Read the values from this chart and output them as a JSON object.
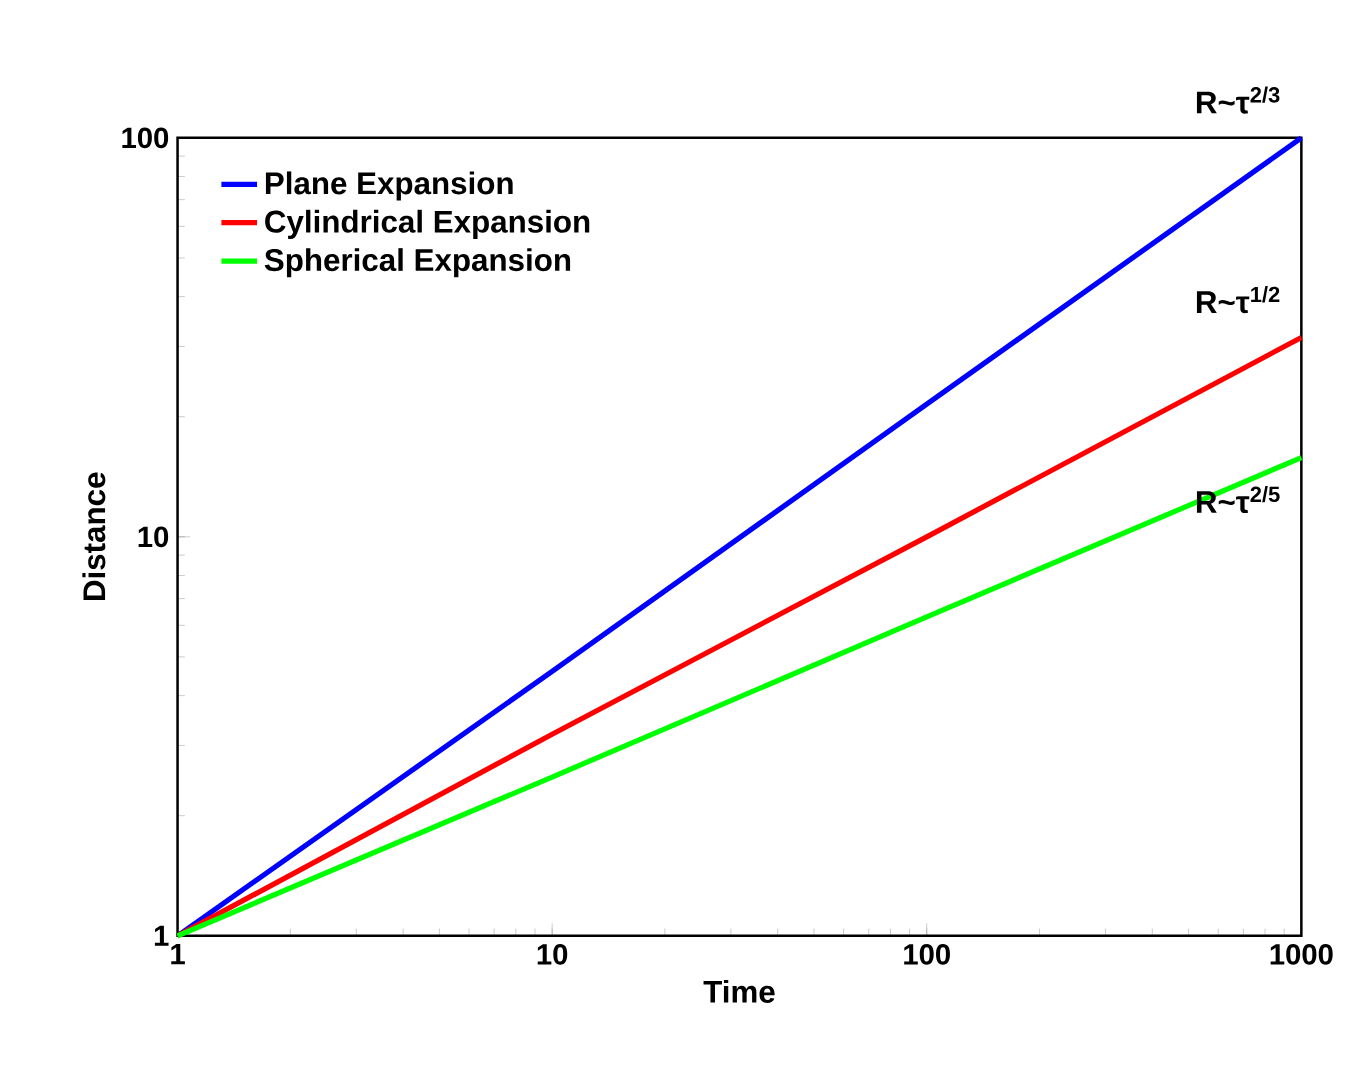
{
  "chart_data": {
    "type": "line",
    "xlabel": "Time",
    "ylabel": "Distance",
    "log": "xy",
    "xlim": [
      1,
      1000
    ],
    "x": [
      1,
      10,
      100,
      1000
    ],
    "ylim": [
      1,
      100
    ],
    "xticks": [
      1,
      10,
      100,
      1000
    ],
    "yticks": [
      1,
      10,
      100
    ],
    "legend": "top left",
    "grid": false,
    "marker": "none",
    "line_style": "solid",
    "series": [
      {
        "name": "Plane Expansion",
        "color": "#0000ff",
        "values": [
          1,
          4.6,
          21.5,
          100
        ]
      },
      {
        "name": "Cylindrical Expansion",
        "color": "#ff0000",
        "values": [
          1,
          3.2,
          10,
          31.6
        ]
      },
      {
        "name": "Spherical Expansion",
        "color": "#00ff00",
        "values": [
          1,
          2.5,
          6.3,
          15.8
        ]
      }
    ],
    "annotations": [
      "R~τ$^{2/3}$",
      "R~τ$^{1/2}$",
      "R~τ$^{2/5}$"
    ]
  }
}
